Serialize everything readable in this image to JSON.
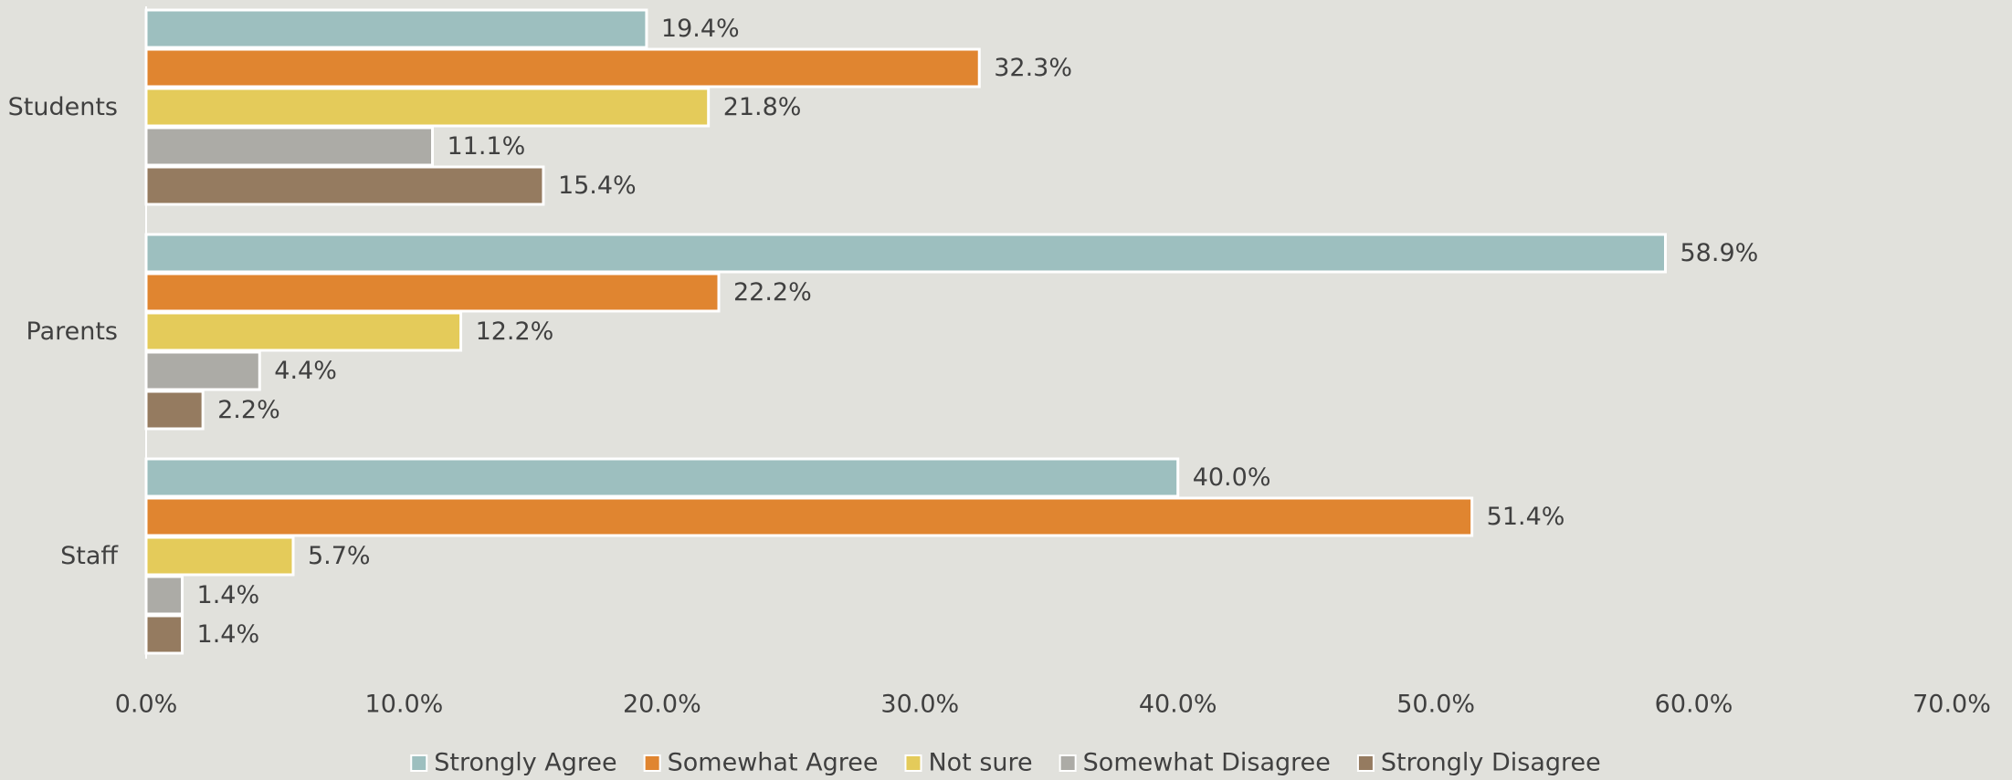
{
  "chart_data": {
    "type": "bar",
    "orientation": "horizontal",
    "categories": [
      "Students",
      "Parents",
      "Staff"
    ],
    "series": [
      {
        "name": "Strongly Agree",
        "color": "#9dbfbf",
        "values": [
          19.4,
          58.9,
          40.0
        ],
        "value_labels": [
          "19.4%",
          "58.9%",
          "40.0%"
        ]
      },
      {
        "name": "Somewhat Agree",
        "color": "#e08530",
        "values": [
          32.3,
          22.2,
          51.4
        ],
        "value_labels": [
          "32.3%",
          "22.2%",
          "51.4%"
        ]
      },
      {
        "name": "Not sure",
        "color": "#e4cb5a",
        "values": [
          21.8,
          12.2,
          5.7
        ],
        "value_labels": [
          "21.8%",
          "12.2%",
          "5.7%"
        ]
      },
      {
        "name": "Somewhat Disagree",
        "color": "#acaba6",
        "values": [
          11.1,
          4.4,
          1.4
        ],
        "value_labels": [
          "11.1%",
          "4.4%",
          "1.4%"
        ]
      },
      {
        "name": "Strongly Disagree",
        "color": "#957b60",
        "values": [
          15.4,
          2.2,
          1.4
        ],
        "value_labels": [
          "15.4%",
          "2.2%",
          "1.4%"
        ]
      }
    ],
    "xlim": [
      0,
      70
    ],
    "xticks": [
      {
        "value": 0,
        "label": "0.0%"
      },
      {
        "value": 10,
        "label": "10.0%"
      },
      {
        "value": 20,
        "label": "20.0%"
      },
      {
        "value": 30,
        "label": "30.0%"
      },
      {
        "value": 40,
        "label": "40.0%"
      },
      {
        "value": 50,
        "label": "50.0%"
      },
      {
        "value": 60,
        "label": "60.0%"
      },
      {
        "value": 70,
        "label": "70.0%"
      }
    ],
    "grid": false,
    "legend": "bottom"
  }
}
